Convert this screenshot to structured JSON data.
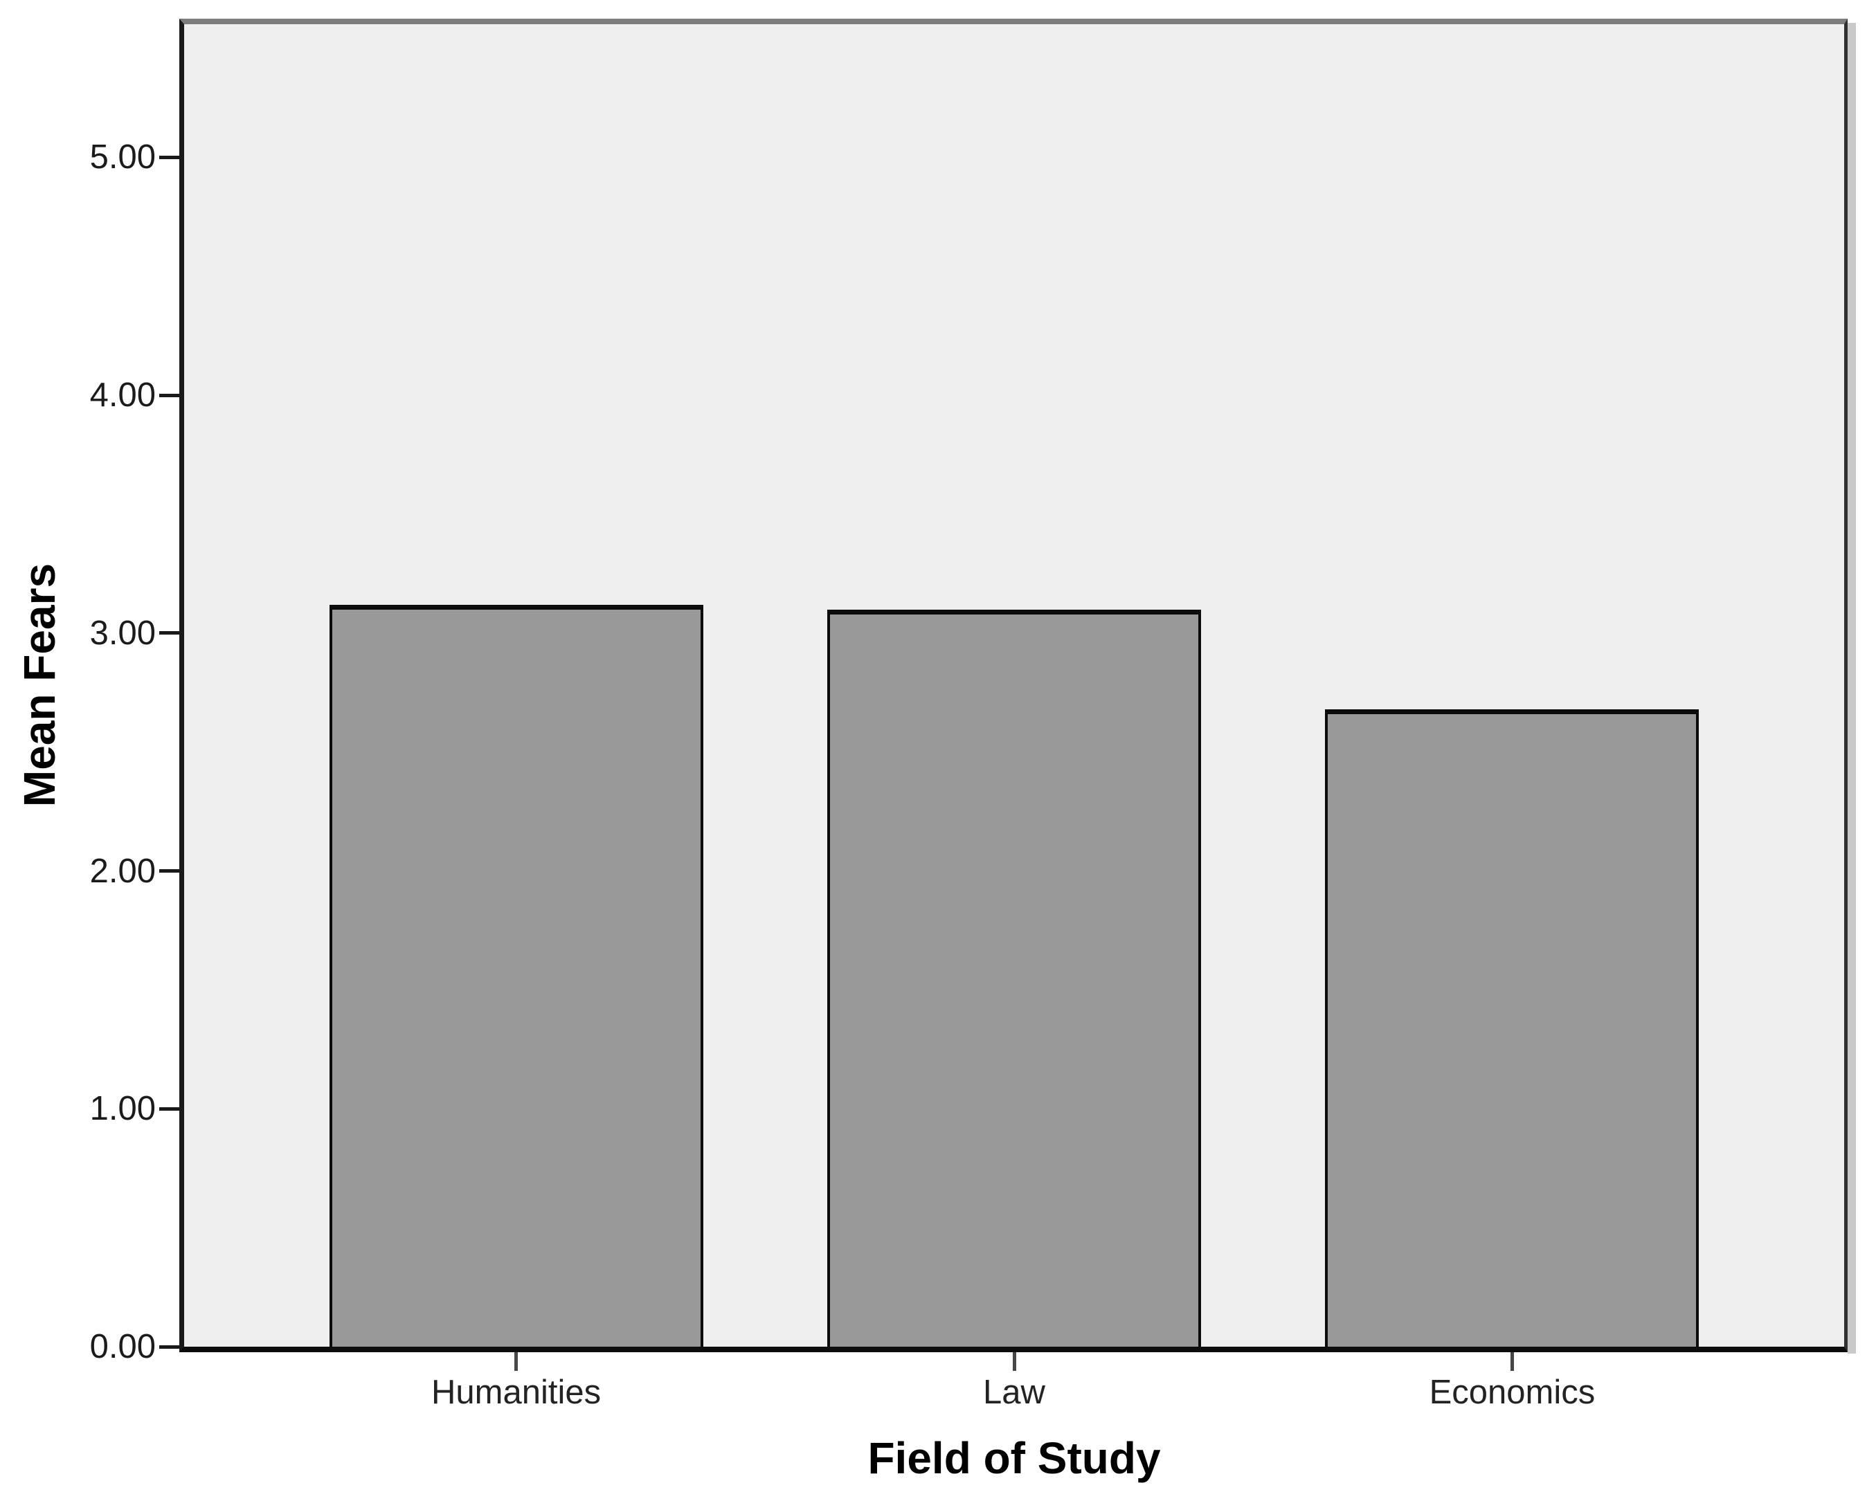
{
  "chart_data": {
    "type": "bar",
    "title": "",
    "categories": [
      "Humanities",
      "Law",
      "Economics"
    ],
    "values": [
      3.12,
      3.1,
      2.68
    ],
    "series": [
      {
        "name": "Mean Fears",
        "values": [
          3.12,
          3.1,
          2.68
        ]
      }
    ],
    "xlabel": "Field of Study",
    "ylabel": "Mean Fears",
    "ylim": [
      0,
      5.56
    ],
    "ytick_interval": 1.0,
    "ytick_labels": [
      "0.00",
      "1.00",
      "2.00",
      "3.00",
      "4.00",
      "5.00"
    ],
    "grid": false,
    "legend_position": "none",
    "colors": {
      "bar_fill": "#999999",
      "bar_border": "#0c0c0c",
      "plot_background": "#efefef",
      "page_background": "#ffffff",
      "frame_top": "#7d7d7d",
      "axis_line": "#0d0d0d",
      "shadow": "#c9c9c9",
      "tick_label": "#1b1b1b",
      "category_label": "#232323",
      "axis_title": "#000000"
    }
  }
}
